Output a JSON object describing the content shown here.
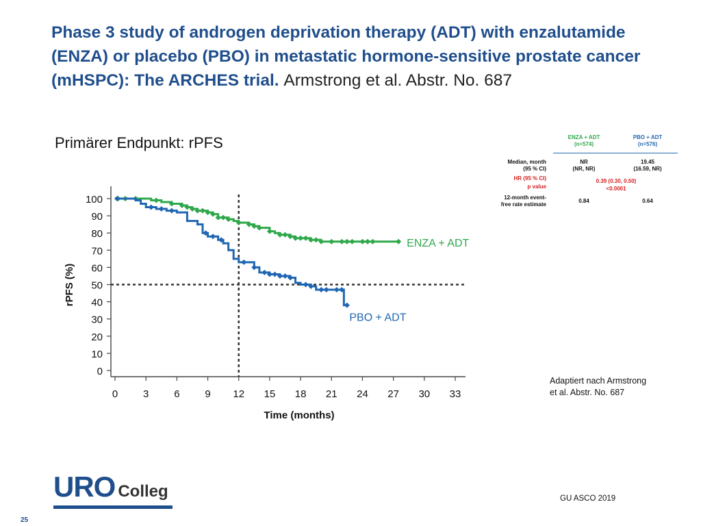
{
  "slide": {
    "title": "Phase 3 study of androgen deprivation therapy (ADT) with enzalutamide (ENZA) or placebo (PBO) in metastatic hormone-sensitive prostate cancer (mHSPC): The ARCHES trial.",
    "title_author": "Armstrong et al. Abstr. No. 687",
    "subtitle": "Primärer Endpunkt: rPFS",
    "source_line1": "Adaptiert nach Armstrong",
    "source_line2": "et al. Abstr. No. 687",
    "footer": "GU ASCO 2019",
    "page_number": "25",
    "logo_uro": "URO",
    "logo_colleg": "Colleg"
  },
  "stats_table": {
    "col_enza_line1": "ENZA + ADT",
    "col_enza_line2": "(n=574)",
    "col_pbo_line1": "PBO + ADT",
    "col_pbo_line2": "(n=576)",
    "row_median_label1": "Median, month",
    "row_median_label2": "(95 % CI)",
    "row_median_enza1": "NR",
    "row_median_enza2": "(NR, NR)",
    "row_median_pbo1": "19.45",
    "row_median_pbo2": "(16.59, NR)",
    "row_hr_label": "HR (95 % CI)",
    "row_p_label": "p value",
    "row_hr_value": "0.39 (0.30, 0.50)",
    "row_p_value": "<0.0001",
    "row_efs_label1": "12-month event-",
    "row_efs_label2": "free rate estimate",
    "row_efs_enza": "0.84",
    "row_efs_pbo": "0.64"
  },
  "colors": {
    "title": "#1f4e8c",
    "enza": "#2ea84a",
    "pbo": "#1f66b2",
    "red": "#d62020"
  },
  "chart_data": {
    "type": "line",
    "subtype": "kaplan-meier",
    "xlabel": "Time (months)",
    "ylabel": "rPFS (%)",
    "xlim": [
      0,
      33
    ],
    "ylim": [
      0,
      100
    ],
    "xticks": [
      0,
      3,
      6,
      9,
      12,
      15,
      18,
      21,
      24,
      27,
      30,
      33
    ],
    "yticks": [
      0,
      10,
      20,
      30,
      40,
      50,
      60,
      70,
      80,
      90,
      100
    ],
    "reference_lines": [
      {
        "axis": "x",
        "value": 12,
        "style": "dotted"
      },
      {
        "axis": "y",
        "value": 50,
        "style": "dotted"
      }
    ],
    "series": [
      {
        "name": "ENZA + ADT",
        "color": "#2ea84a",
        "x": [
          0,
          1,
          2,
          3,
          3.5,
          4.5,
          5.5,
          6.5,
          7,
          7.5,
          8,
          9,
          9.5,
          10,
          11,
          11.5,
          12,
          13,
          13.5,
          14,
          15,
          15.5,
          16,
          17,
          17.5,
          18,
          19,
          19.5,
          20,
          21,
          22,
          23,
          24,
          25,
          26,
          27,
          27.5
        ],
        "y": [
          100,
          100,
          100,
          100,
          99,
          98,
          97,
          96,
          95,
          94,
          93,
          92,
          91,
          89,
          88,
          87,
          86,
          85,
          84,
          83,
          81,
          80,
          79,
          78,
          77,
          77,
          76,
          76,
          75,
          75,
          75,
          75,
          75,
          75,
          75,
          75,
          75
        ],
        "censor_x": [
          0.3,
          1,
          2,
          4,
          5.5,
          6.5,
          7,
          7.5,
          8,
          8.5,
          9,
          9.5,
          10,
          10.5,
          11,
          12,
          13,
          13.5,
          14,
          15,
          16,
          16.5,
          17,
          17.5,
          18,
          18.5,
          19,
          19.5,
          20,
          21,
          22,
          22.5,
          23,
          24,
          24.5,
          25,
          27.5
        ]
      },
      {
        "name": "PBO + ADT",
        "color": "#1f66b2",
        "x": [
          0,
          2,
          2.5,
          3,
          4,
          5,
          6,
          7,
          8,
          8.5,
          9,
          10,
          10.5,
          11,
          11.5,
          12,
          13,
          13.5,
          14,
          15,
          16,
          17,
          17.5,
          18,
          19,
          19.5,
          20,
          21,
          22,
          22.2,
          22.6
        ],
        "y": [
          100,
          99,
          97,
          95,
          94,
          93,
          92,
          87,
          85,
          80,
          78,
          76,
          74,
          70,
          65,
          63,
          63,
          60,
          57,
          56,
          55,
          54,
          51,
          50,
          49,
          47,
          47,
          47,
          47,
          38,
          38
        ],
        "censor_x": [
          0.2,
          3.5,
          4.5,
          5.5,
          8.8,
          9.5,
          10.3,
          12.5,
          13.5,
          14.5,
          15,
          15.5,
          16,
          16.5,
          17,
          18.5,
          19,
          20,
          20.5,
          21.5,
          22,
          22.5
        ]
      }
    ]
  }
}
